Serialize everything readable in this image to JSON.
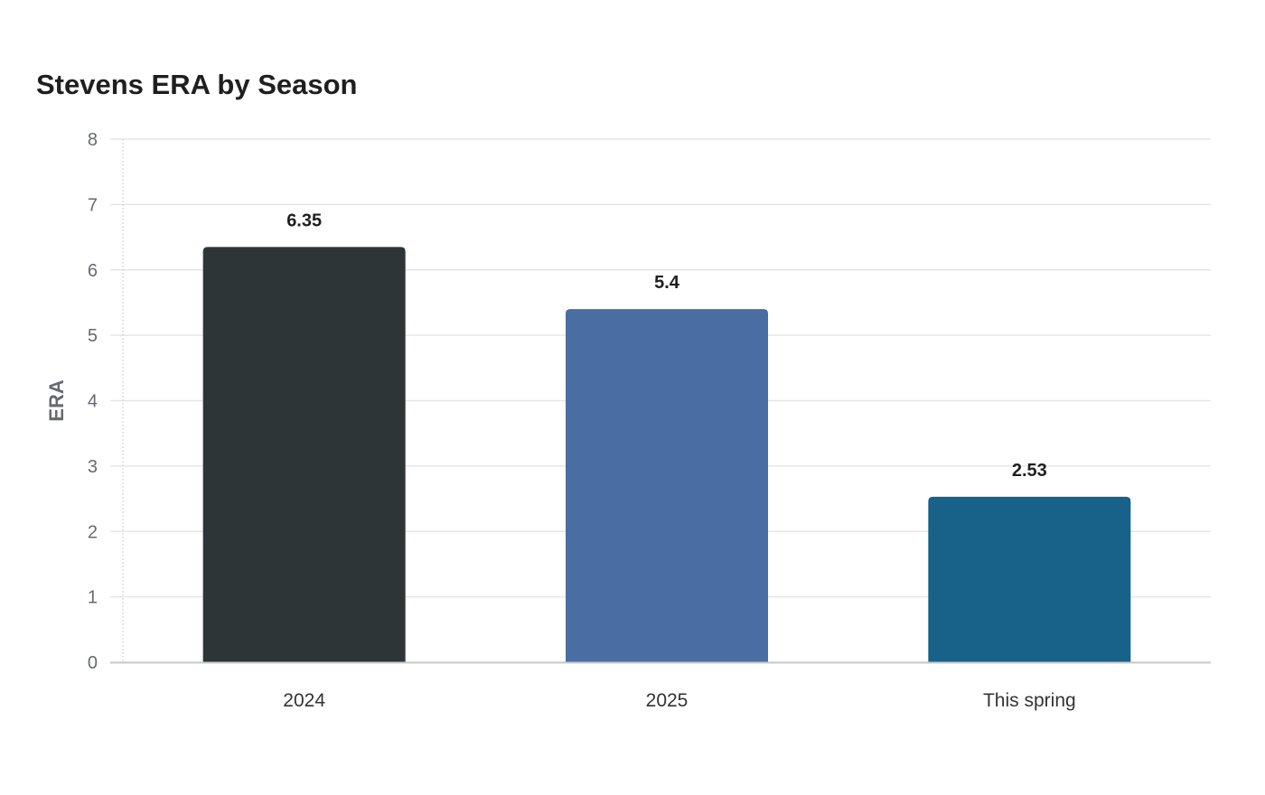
{
  "chart_data": {
    "type": "bar",
    "title": "Stevens ERA by Season",
    "xlabel": "",
    "ylabel": "ERA",
    "categories": [
      "2024",
      "2025",
      "This spring"
    ],
    "values": [
      6.35,
      5.4,
      2.53
    ],
    "value_labels": [
      "6.35",
      "5.4",
      "2.53"
    ],
    "colors": [
      "#2e3537",
      "#4a6ea3",
      "#186188"
    ],
    "ylim": [
      0,
      8
    ],
    "yticks": [
      0,
      1,
      2,
      3,
      4,
      5,
      6,
      7,
      8
    ],
    "grid": true,
    "legend": "none"
  }
}
